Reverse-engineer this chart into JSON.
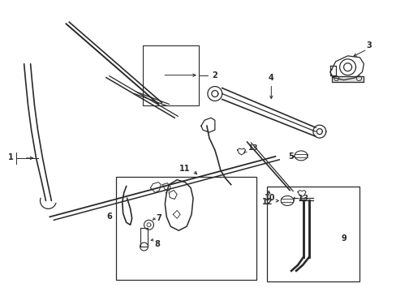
{
  "bg_color": "#ffffff",
  "line_color": "#2a2a2a",
  "fig_width": 4.89,
  "fig_height": 3.6,
  "dpi": 100,
  "lw": 0.9
}
